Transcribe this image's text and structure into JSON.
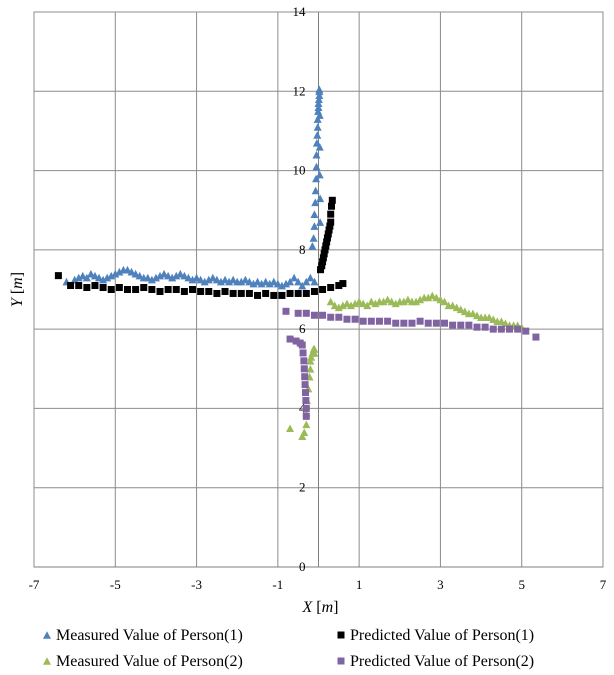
{
  "chart_data": {
    "type": "scatter",
    "title": "",
    "xlabel": "X [m]",
    "ylabel": "Y [m]",
    "xlim": [
      -7,
      7
    ],
    "ylim": [
      0,
      14
    ],
    "xticks": [
      -7,
      -5,
      -3,
      -1,
      1,
      3,
      5,
      7
    ],
    "yticks": [
      0,
      2,
      4,
      6,
      8,
      10,
      12,
      14
    ],
    "xtick_labels": [
      "-7",
      "-5",
      "-3",
      "-1",
      "1",
      "3",
      "5",
      "7"
    ],
    "ytick_labels": [
      "0",
      "2",
      "4",
      "6",
      "8",
      "10",
      "12",
      "14"
    ],
    "grid": true,
    "legend_position": "bottom",
    "series": [
      {
        "name": "Measured Value of Person(1)",
        "marker": "triangle",
        "color": "#4f81bd",
        "x": [
          -6.2,
          -6.0,
          -5.9,
          -5.8,
          -5.7,
          -5.6,
          -5.5,
          -5.4,
          -5.3,
          -5.2,
          -5.1,
          -5.0,
          -4.9,
          -4.8,
          -4.7,
          -4.6,
          -4.5,
          -4.4,
          -4.3,
          -4.2,
          -4.1,
          -4.0,
          -3.9,
          -3.8,
          -3.7,
          -3.6,
          -3.5,
          -3.4,
          -3.3,
          -3.2,
          -3.1,
          -3.0,
          -2.9,
          -2.8,
          -2.7,
          -2.6,
          -2.5,
          -2.4,
          -2.3,
          -2.2,
          -2.1,
          -2.0,
          -1.9,
          -1.8,
          -1.7,
          -1.6,
          -1.5,
          -1.4,
          -1.3,
          -1.2,
          -1.1,
          -1.0,
          -0.9,
          -0.8,
          -0.7,
          -0.6,
          -0.5,
          -0.4,
          -0.3,
          -0.2,
          -0.1,
          -0.15,
          -0.12,
          -0.1,
          -0.1,
          -0.08,
          -0.07,
          -0.06,
          -0.05,
          -0.05,
          -0.04,
          -0.03,
          -0.02,
          -0.02,
          -0.01,
          0.0,
          0.0,
          0.01,
          0.02,
          0.02,
          0.02,
          0.03,
          0.03,
          0.03,
          0.04,
          0.04
        ],
        "y": [
          7.2,
          7.25,
          7.3,
          7.35,
          7.3,
          7.4,
          7.35,
          7.3,
          7.25,
          7.3,
          7.35,
          7.4,
          7.45,
          7.5,
          7.5,
          7.45,
          7.4,
          7.35,
          7.3,
          7.3,
          7.25,
          7.3,
          7.35,
          7.4,
          7.35,
          7.3,
          7.35,
          7.4,
          7.35,
          7.3,
          7.25,
          7.3,
          7.25,
          7.2,
          7.25,
          7.3,
          7.25,
          7.2,
          7.25,
          7.2,
          7.25,
          7.2,
          7.2,
          7.25,
          7.2,
          7.15,
          7.2,
          7.15,
          7.2,
          7.15,
          7.2,
          7.15,
          7.1,
          7.15,
          7.2,
          7.3,
          7.2,
          7.1,
          7.2,
          7.3,
          7.2,
          8.1,
          8.3,
          8.6,
          8.9,
          9.2,
          9.5,
          9.8,
          10.1,
          10.4,
          10.7,
          10.9,
          11.1,
          11.3,
          11.5,
          11.6,
          11.7,
          11.8,
          11.9,
          12.0,
          12.05,
          11.4,
          10.6,
          9.9,
          9.3,
          8.7
        ]
      },
      {
        "name": "Predicted Value of Person(1)",
        "marker": "square",
        "color": "#000000",
        "x": [
          -6.4,
          -6.1,
          -5.9,
          -5.7,
          -5.5,
          -5.3,
          -5.1,
          -4.9,
          -4.7,
          -4.5,
          -4.3,
          -4.1,
          -3.9,
          -3.7,
          -3.5,
          -3.3,
          -3.1,
          -2.9,
          -2.7,
          -2.5,
          -2.3,
          -2.1,
          -1.9,
          -1.7,
          -1.5,
          -1.3,
          -1.1,
          -0.9,
          -0.7,
          -0.5,
          -0.3,
          -0.1,
          0.1,
          0.3,
          0.5,
          0.6,
          0.05,
          0.08,
          0.1,
          0.12,
          0.14,
          0.16,
          0.18,
          0.2,
          0.22,
          0.24,
          0.26,
          0.28,
          0.3,
          0.3,
          0.32,
          0.34
        ],
        "y": [
          7.35,
          7.1,
          7.1,
          7.05,
          7.1,
          7.05,
          7.0,
          7.05,
          7.0,
          7.0,
          7.05,
          7.0,
          6.95,
          7.0,
          7.0,
          6.95,
          7.0,
          6.95,
          6.95,
          6.9,
          6.95,
          6.9,
          6.9,
          6.9,
          6.85,
          6.9,
          6.85,
          6.85,
          6.9,
          6.9,
          6.9,
          6.95,
          7.0,
          7.05,
          7.1,
          7.15,
          7.5,
          7.6,
          7.7,
          7.8,
          7.9,
          8.0,
          8.1,
          8.2,
          8.3,
          8.4,
          8.5,
          8.6,
          8.7,
          8.9,
          9.1,
          9.25
        ]
      },
      {
        "name": "Measured Value of Person(2)",
        "marker": "triangle",
        "color": "#9bbb59",
        "x": [
          -0.7,
          -0.4,
          -0.35,
          -0.3,
          -0.3,
          -0.28,
          -0.25,
          -0.22,
          -0.2,
          -0.2,
          -0.18,
          -0.15,
          -0.12,
          -0.1,
          -0.1,
          0.3,
          0.4,
          0.5,
          0.6,
          0.7,
          0.8,
          0.9,
          1.0,
          1.1,
          1.2,
          1.3,
          1.4,
          1.5,
          1.6,
          1.7,
          1.8,
          1.9,
          2.0,
          2.1,
          2.2,
          2.3,
          2.4,
          2.5,
          2.6,
          2.7,
          2.8,
          2.9,
          3.0,
          3.1,
          3.2,
          3.3,
          3.4,
          3.5,
          3.6,
          3.7,
          3.8,
          3.9,
          4.0,
          4.1,
          4.2,
          4.3,
          4.4,
          4.5,
          4.6,
          4.7,
          4.8,
          4.9,
          5.0
        ],
        "y": [
          3.5,
          3.3,
          3.4,
          3.6,
          3.9,
          4.2,
          4.5,
          4.8,
          5.0,
          5.2,
          5.3,
          5.4,
          5.5,
          5.5,
          5.4,
          6.7,
          6.6,
          6.55,
          6.6,
          6.65,
          6.6,
          6.65,
          6.7,
          6.65,
          6.6,
          6.7,
          6.65,
          6.7,
          6.7,
          6.75,
          6.7,
          6.65,
          6.7,
          6.7,
          6.75,
          6.7,
          6.7,
          6.75,
          6.8,
          6.8,
          6.85,
          6.8,
          6.75,
          6.7,
          6.6,
          6.6,
          6.55,
          6.5,
          6.45,
          6.4,
          6.4,
          6.35,
          6.3,
          6.3,
          6.3,
          6.25,
          6.2,
          6.2,
          6.15,
          6.1,
          6.1,
          6.1,
          6.05
        ]
      },
      {
        "name": "Predicted Value of Person(2)",
        "marker": "square",
        "color": "#8064a2",
        "x": [
          -0.8,
          -0.5,
          -0.3,
          -0.1,
          0.1,
          0.3,
          0.5,
          0.7,
          0.9,
          1.1,
          1.3,
          1.5,
          1.7,
          1.9,
          2.1,
          2.3,
          2.5,
          2.7,
          2.9,
          3.1,
          3.3,
          3.5,
          3.7,
          3.9,
          4.1,
          4.3,
          4.5,
          4.7,
          4.9,
          5.1,
          5.35,
          -0.7,
          -0.55,
          -0.45,
          -0.4,
          -0.38,
          -0.36,
          -0.35,
          -0.34,
          -0.33,
          -0.32,
          -0.31,
          -0.3,
          -0.3
        ],
        "y": [
          6.45,
          6.4,
          6.4,
          6.35,
          6.35,
          6.3,
          6.3,
          6.25,
          6.25,
          6.2,
          6.2,
          6.2,
          6.2,
          6.15,
          6.15,
          6.15,
          6.2,
          6.15,
          6.15,
          6.15,
          6.1,
          6.1,
          6.1,
          6.05,
          6.05,
          6.0,
          6.0,
          6.0,
          6.0,
          5.95,
          5.8,
          5.75,
          5.7,
          5.65,
          5.6,
          5.4,
          5.2,
          5.0,
          4.8,
          4.6,
          4.4,
          4.2,
          4.0,
          3.8
        ]
      }
    ]
  }
}
